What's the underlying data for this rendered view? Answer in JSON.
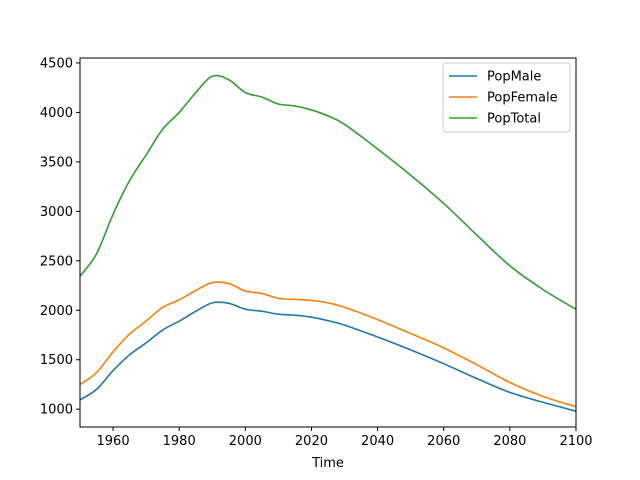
{
  "chart_data": {
    "type": "line",
    "title": "",
    "xlabel": "Time",
    "ylabel": "",
    "xlim": [
      1950,
      2100
    ],
    "ylim": [
      820,
      4550
    ],
    "xticks": [
      1960,
      1980,
      2000,
      2020,
      2040,
      2060,
      2080,
      2100
    ],
    "yticks": [
      1000,
      1500,
      2000,
      2500,
      3000,
      3500,
      4000,
      4500
    ],
    "grid": false,
    "legend_position": "top-right",
    "series": [
      {
        "name": "PopMale",
        "color": "#1f77b4",
        "points": [
          [
            1950,
            1095
          ],
          [
            1955,
            1200
          ],
          [
            1960,
            1390
          ],
          [
            1965,
            1550
          ],
          [
            1970,
            1670
          ],
          [
            1975,
            1800
          ],
          [
            1980,
            1890
          ],
          [
            1985,
            1990
          ],
          [
            1990,
            2075
          ],
          [
            1995,
            2070
          ],
          [
            2000,
            2010
          ],
          [
            2005,
            1990
          ],
          [
            2010,
            1960
          ],
          [
            2015,
            1950
          ],
          [
            2020,
            1930
          ],
          [
            2025,
            1895
          ],
          [
            2030,
            1850
          ],
          [
            2040,
            1730
          ],
          [
            2050,
            1600
          ],
          [
            2060,
            1460
          ],
          [
            2070,
            1310
          ],
          [
            2080,
            1170
          ],
          [
            2090,
            1070
          ],
          [
            2100,
            980
          ]
        ]
      },
      {
        "name": "PopFemale",
        "color": "#ff7f0e",
        "points": [
          [
            1950,
            1250
          ],
          [
            1955,
            1370
          ],
          [
            1960,
            1580
          ],
          [
            1965,
            1760
          ],
          [
            1970,
            1890
          ],
          [
            1975,
            2030
          ],
          [
            1980,
            2105
          ],
          [
            1985,
            2200
          ],
          [
            1990,
            2280
          ],
          [
            1995,
            2270
          ],
          [
            2000,
            2195
          ],
          [
            2005,
            2170
          ],
          [
            2010,
            2120
          ],
          [
            2015,
            2110
          ],
          [
            2020,
            2100
          ],
          [
            2025,
            2075
          ],
          [
            2030,
            2030
          ],
          [
            2040,
            1905
          ],
          [
            2050,
            1765
          ],
          [
            2060,
            1620
          ],
          [
            2070,
            1450
          ],
          [
            2080,
            1270
          ],
          [
            2090,
            1130
          ],
          [
            2100,
            1025
          ]
        ]
      },
      {
        "name": "PopTotal",
        "color": "#2ca02c",
        "points": [
          [
            1950,
            2345
          ],
          [
            1955,
            2570
          ],
          [
            1960,
            2970
          ],
          [
            1965,
            3310
          ],
          [
            1970,
            3570
          ],
          [
            1975,
            3830
          ],
          [
            1980,
            4000
          ],
          [
            1985,
            4200
          ],
          [
            1990,
            4365
          ],
          [
            1995,
            4330
          ],
          [
            2000,
            4200
          ],
          [
            2005,
            4155
          ],
          [
            2010,
            4085
          ],
          [
            2015,
            4065
          ],
          [
            2020,
            4025
          ],
          [
            2025,
            3965
          ],
          [
            2030,
            3880
          ],
          [
            2040,
            3630
          ],
          [
            2050,
            3365
          ],
          [
            2060,
            3080
          ],
          [
            2070,
            2760
          ],
          [
            2080,
            2450
          ],
          [
            2090,
            2210
          ],
          [
            2100,
            2010
          ]
        ]
      }
    ]
  }
}
